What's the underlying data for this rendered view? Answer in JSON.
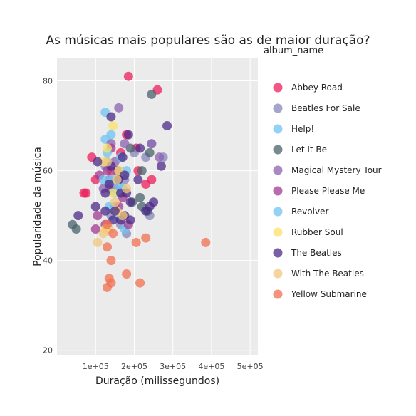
{
  "chart_data": {
    "type": "scatter",
    "title": "As músicas mais populares são as de maior duração?",
    "xlabel": "Duração (milissegundos)",
    "ylabel": "Popularidade da música",
    "xlim": [
      0,
      520000
    ],
    "ylim": [
      19,
      85
    ],
    "x_ticks": [
      100000,
      200000,
      300000,
      400000,
      500000
    ],
    "x_tick_labels": [
      "1e+05",
      "2e+05",
      "3e+05",
      "4e+05",
      "5e+05"
    ],
    "y_ticks": [
      20,
      40,
      60,
      80
    ],
    "y_tick_labels": [
      "20",
      "40",
      "60",
      "80"
    ],
    "grid": true,
    "legend_title": "album_name",
    "legend_position": "right",
    "series": [
      {
        "name": "Abbey Road",
        "color": "#EE1E5C",
        "points": [
          [
            185000,
            81
          ],
          [
            260000,
            78
          ],
          [
            180000,
            68
          ],
          [
            205000,
            65
          ],
          [
            90000,
            63
          ],
          [
            210000,
            60
          ],
          [
            100000,
            58
          ],
          [
            245000,
            58
          ],
          [
            70000,
            55
          ],
          [
            75000,
            55
          ],
          [
            230000,
            57
          ],
          [
            165000,
            64
          ],
          [
            140000,
            60
          ]
        ]
      },
      {
        "name": "Beatles For Sale",
        "color": "#8686BC",
        "points": [
          [
            125000,
            61
          ],
          [
            160000,
            60
          ],
          [
            135000,
            58
          ],
          [
            150000,
            56
          ],
          [
            175000,
            58
          ],
          [
            150000,
            52
          ],
          [
            140000,
            50
          ],
          [
            165000,
            48
          ],
          [
            180000,
            46
          ],
          [
            245000,
            66
          ],
          [
            275000,
            63
          ],
          [
            230000,
            63
          ],
          [
            200000,
            64
          ],
          [
            240000,
            50
          ]
        ]
      },
      {
        "name": "Help!",
        "color": "#6EC3F0",
        "points": [
          [
            125000,
            73
          ],
          [
            125000,
            67
          ],
          [
            140000,
            68
          ],
          [
            130000,
            62
          ],
          [
            155000,
            60
          ],
          [
            160000,
            57
          ],
          [
            170000,
            56
          ],
          [
            180000,
            60
          ],
          [
            175000,
            47
          ]
        ]
      },
      {
        "name": "Let It Be",
        "color": "#49636E",
        "points": [
          [
            245000,
            77
          ],
          [
            40000,
            48
          ],
          [
            50000,
            47
          ],
          [
            220000,
            60
          ],
          [
            215000,
            54
          ],
          [
            195000,
            53
          ],
          [
            220000,
            52
          ],
          [
            235000,
            51
          ],
          [
            240000,
            64
          ],
          [
            190000,
            65
          ]
        ]
      },
      {
        "name": "Magical Mystery Tour",
        "color": "#8B62B0",
        "points": [
          [
            160000,
            74
          ],
          [
            140000,
            66
          ],
          [
            175000,
            66
          ],
          [
            150000,
            62
          ],
          [
            265000,
            63
          ],
          [
            245000,
            66
          ],
          [
            135000,
            56
          ],
          [
            120000,
            56
          ]
        ]
      },
      {
        "name": "Please Please Me",
        "color": "#A23B92",
        "points": [
          [
            140000,
            65
          ],
          [
            155000,
            60
          ],
          [
            130000,
            60
          ],
          [
            110000,
            59
          ],
          [
            105000,
            50
          ],
          [
            100000,
            47
          ],
          [
            160000,
            52
          ],
          [
            170000,
            54
          ],
          [
            185000,
            48
          ],
          [
            125000,
            48
          ]
        ]
      },
      {
        "name": "Revolver",
        "color": "#6EC3F0",
        "points": [
          [
            130000,
            64
          ],
          [
            120000,
            58
          ],
          [
            145000,
            58
          ],
          [
            165000,
            63
          ],
          [
            150000,
            55
          ],
          [
            135000,
            52
          ],
          [
            155000,
            50
          ]
        ]
      },
      {
        "name": "Rubber Soul",
        "color": "#FBE26A",
        "points": [
          [
            145000,
            70
          ],
          [
            130000,
            65
          ],
          [
            120000,
            62
          ],
          [
            160000,
            60
          ],
          [
            145000,
            55
          ],
          [
            155000,
            51
          ],
          [
            170000,
            50
          ],
          [
            125000,
            47
          ]
        ]
      },
      {
        "name": "The Beatles",
        "color": "#4B2988",
        "points": [
          [
            185000,
            68
          ],
          [
            140000,
            72
          ],
          [
            285000,
            70
          ],
          [
            170000,
            63
          ],
          [
            215000,
            65
          ],
          [
            270000,
            61
          ],
          [
            140000,
            61
          ],
          [
            105000,
            62
          ],
          [
            175000,
            59
          ],
          [
            210000,
            58
          ],
          [
            160000,
            58
          ],
          [
            135000,
            57
          ],
          [
            125000,
            55
          ],
          [
            165000,
            55
          ],
          [
            180000,
            55
          ],
          [
            190000,
            53
          ],
          [
            250000,
            53
          ],
          [
            125000,
            51
          ],
          [
            230000,
            51
          ],
          [
            240000,
            52
          ],
          [
            55000,
            50
          ],
          [
            100000,
            52
          ],
          [
            150000,
            51
          ],
          [
            145000,
            49
          ],
          [
            175000,
            50
          ],
          [
            190000,
            49
          ],
          [
            165000,
            49
          ]
        ]
      },
      {
        "name": "With The Beatles",
        "color": "#F2C77C",
        "points": [
          [
            130000,
            62
          ],
          [
            155000,
            58
          ],
          [
            180000,
            56
          ],
          [
            150000,
            53
          ],
          [
            170000,
            50
          ],
          [
            135000,
            47
          ],
          [
            120000,
            46
          ],
          [
            105000,
            44
          ]
        ]
      },
      {
        "name": "Yellow Submarine",
        "color": "#F27050",
        "points": [
          [
            385000,
            44
          ],
          [
            130000,
            48
          ],
          [
            145000,
            46
          ],
          [
            130000,
            43
          ],
          [
            140000,
            40
          ],
          [
            180000,
            37
          ],
          [
            135000,
            36
          ],
          [
            140000,
            35
          ],
          [
            130000,
            34
          ],
          [
            215000,
            35
          ],
          [
            205000,
            44
          ],
          [
            230000,
            45
          ]
        ]
      }
    ]
  }
}
